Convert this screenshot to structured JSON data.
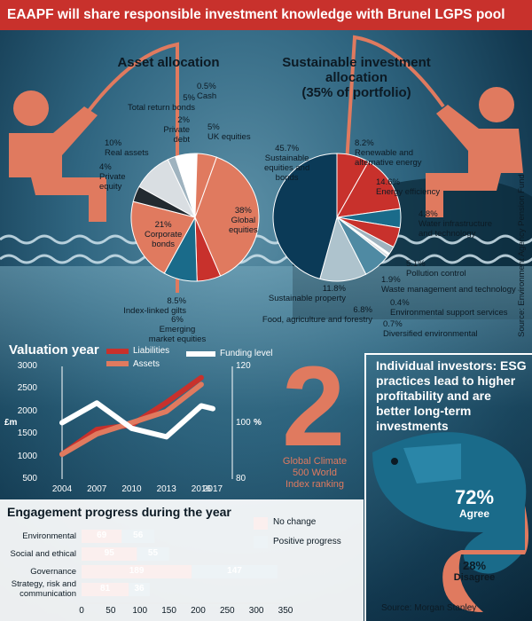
{
  "headline": "EAAPF will share responsible investment knowledge with Brunel LGPS pool",
  "source_side": "Source: Environment Agency Pension Fund",
  "asset_allocation": {
    "title": "Asset allocation",
    "labels": {
      "cash": [
        "0.5%",
        "Cash"
      ],
      "uk_equities": [
        "5%",
        "UK equities"
      ],
      "global_equities": [
        "38%",
        "Global",
        "equities"
      ],
      "emerging": [
        "6%",
        "Emerging",
        "market equities"
      ],
      "index_linked": [
        "8.5%",
        "Index-linked gilts"
      ],
      "corporate": [
        "21%",
        "Corporate",
        "bonds"
      ],
      "private_equity": [
        "4%",
        "Private",
        "equity"
      ],
      "real_assets": [
        "10%",
        "Real assets"
      ],
      "private_debt": [
        "2%",
        "Private",
        "debt"
      ],
      "total_return": [
        "5%",
        "Total return bonds"
      ]
    }
  },
  "sustainable_allocation": {
    "title": [
      "Sustainable investment allocation",
      "(35% of portfolio)"
    ],
    "labels": {
      "sustainable_equities": [
        "45.7%",
        "Sustainable",
        "equities and",
        "bonds"
      ],
      "renewable": [
        "8.2%",
        "Renewable and",
        "alternative energy"
      ],
      "efficiency": [
        "14.6%",
        "Energy efficiency"
      ],
      "water": [
        "4.8%",
        "Water infrastructure",
        "and technology"
      ],
      "pollution": [
        "5.1%",
        "Pollution control"
      ],
      "waste": [
        "1.9%",
        "Waste management and technology"
      ],
      "env_support": [
        "0.4%",
        "Environmental support services"
      ],
      "diversified": [
        "0.7%",
        "Diversified environmental"
      ],
      "food": [
        "6.8%",
        "Food, agriculture and forestry"
      ],
      "property": [
        "11.8%",
        "Sustainable property"
      ]
    }
  },
  "valuation": {
    "title": "Valuation year",
    "legend_liabilities": "Liabilities",
    "legend_assets": "Assets",
    "legend_funding": "Funding level",
    "left_unit": "£m",
    "right_unit": "%"
  },
  "big_stat": {
    "value": "2",
    "caption": [
      "Global Climate",
      "500 World",
      "Index ranking"
    ]
  },
  "investors": {
    "title": "Individual investors: ESG practices lead to higher profitability and are better long-term investments",
    "agree_pct": "72%",
    "agree_label": "Agree",
    "disagree_pct": "28%",
    "disagree_label": "Disagree",
    "source": "Source: Morgan Stanley"
  },
  "engagement": {
    "title": "Engagement progress during the year",
    "legend_no_change": "No change",
    "legend_positive": "Positive progress"
  },
  "colors": {
    "red": "#c8312c",
    "salmon": "#e07a5f",
    "teal": "#1a6b8a",
    "navy": "#0b3a57",
    "light": "#dfe7ec"
  },
  "chart_data": [
    {
      "type": "pie",
      "title": "Asset allocation",
      "slices": [
        {
          "label": "Cash",
          "value": 0.5
        },
        {
          "label": "UK equities",
          "value": 5
        },
        {
          "label": "Global equities",
          "value": 38
        },
        {
          "label": "Emerging market equities",
          "value": 6
        },
        {
          "label": "Index-linked gilts",
          "value": 8.5
        },
        {
          "label": "Corporate bonds",
          "value": 21
        },
        {
          "label": "Private equity",
          "value": 4
        },
        {
          "label": "Real assets",
          "value": 10
        },
        {
          "label": "Private debt",
          "value": 2
        },
        {
          "label": "Total return bonds",
          "value": 5
        }
      ]
    },
    {
      "type": "pie",
      "title": "Sustainable investment allocation (35% of portfolio)",
      "slices": [
        {
          "label": "Renewable and alternative energy",
          "value": 8.2
        },
        {
          "label": "Energy efficiency",
          "value": 14.6
        },
        {
          "label": "Water infrastructure and technology",
          "value": 4.8
        },
        {
          "label": "Pollution control",
          "value": 5.1
        },
        {
          "label": "Waste management and technology",
          "value": 1.9
        },
        {
          "label": "Environmental support services",
          "value": 0.4
        },
        {
          "label": "Diversified environmental",
          "value": 0.7
        },
        {
          "label": "Food, agriculture and forestry",
          "value": 6.8
        },
        {
          "label": "Sustainable property",
          "value": 11.8
        },
        {
          "label": "Sustainable equities and bonds",
          "value": 45.7
        }
      ]
    },
    {
      "type": "line",
      "title": "Valuation year",
      "x": [
        2004,
        2007,
        2010,
        2013,
        2016,
        2017
      ],
      "x_ticks": [
        "2004",
        "2007",
        "2010",
        "2013",
        "2016",
        "2017"
      ],
      "ylim_left": [
        500,
        3000
      ],
      "y_ticks_left": [
        "500",
        "1000",
        "1500",
        "2000",
        "2500",
        "3000"
      ],
      "ylim_right": [
        80,
        120
      ],
      "y_ticks_right": [
        "80",
        "100",
        "120"
      ],
      "series": [
        {
          "name": "Liabilities",
          "axis": "left",
          "x": [
            2004,
            2007,
            2010,
            2013,
            2016
          ],
          "values": [
            1050,
            1600,
            1700,
            2200,
            2750
          ]
        },
        {
          "name": "Assets",
          "axis": "left",
          "x": [
            2004,
            2007,
            2010,
            2013,
            2016
          ],
          "values": [
            1050,
            1500,
            1750,
            2000,
            2600
          ]
        },
        {
          "name": "Funding level",
          "axis": "right",
          "x": [
            2004,
            2007,
            2010,
            2013,
            2016,
            2017
          ],
          "values": [
            100,
            107,
            98,
            95,
            106,
            105
          ]
        }
      ]
    },
    {
      "type": "pie",
      "title": "Individual investors: ESG practices lead to higher profitability and are better long-term investments",
      "slices": [
        {
          "label": "Agree",
          "value": 72
        },
        {
          "label": "Disagree",
          "value": 28
        }
      ]
    },
    {
      "type": "bar",
      "orientation": "horizontal",
      "stacked": true,
      "title": "Engagement progress during the year",
      "categories": [
        "Environmental",
        "Social and ethical",
        "Governance",
        "Strategy, risk and communication"
      ],
      "series": [
        {
          "name": "No change",
          "values": [
            69,
            95,
            189,
            81
          ]
        },
        {
          "name": "Positive progress",
          "values": [
            56,
            55,
            147,
            36
          ]
        }
      ],
      "xlim": [
        0,
        350
      ],
      "x_ticks": [
        "0",
        "50",
        "100",
        "150",
        "200",
        "250",
        "300",
        "350"
      ]
    }
  ]
}
